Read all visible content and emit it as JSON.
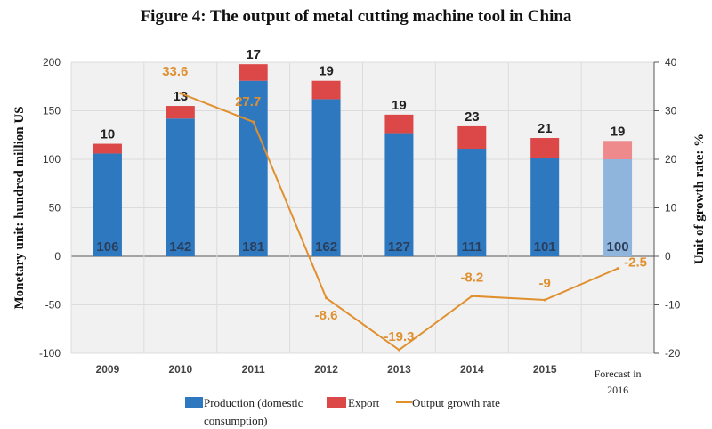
{
  "chart_data": {
    "type": "bar+line",
    "title": "Figure 4: The output of metal cutting machine tool in China",
    "ylabel": "Monetary unit: hundred million US",
    "y2label": "Unit of growth rate: %",
    "categories": [
      "2009",
      "2010",
      "2011",
      "2012",
      "2013",
      "2014",
      "2015",
      "Forecast in 2016"
    ],
    "ylim": [
      -100,
      200
    ],
    "yticks": [
      -100,
      -50,
      0,
      50,
      100,
      150,
      200
    ],
    "y2lim": [
      -20,
      40
    ],
    "y2ticks": [
      -20,
      -10,
      0,
      10,
      20,
      30,
      40
    ],
    "stacked": true,
    "grid": true,
    "legend_position": "bottom",
    "series": [
      {
        "name": "Production (domestic consumption)",
        "type": "bar",
        "axis": "left",
        "color": "#2e78c0",
        "values": [
          106,
          142,
          181,
          162,
          127,
          111,
          101,
          100
        ]
      },
      {
        "name": "Export",
        "type": "bar",
        "axis": "left",
        "color": "#dc4848",
        "values": [
          10,
          13,
          17,
          19,
          19,
          23,
          21,
          19
        ]
      },
      {
        "name": "Output growth rate",
        "type": "line",
        "axis": "right",
        "color": "#e0902f",
        "values": [
          null,
          33.6,
          27.7,
          -8.6,
          -19.3,
          -8.2,
          -9,
          -2.5
        ]
      }
    ],
    "forecast_colors": {
      "production": "#8fb5dd",
      "export": "#ee8a8c"
    }
  }
}
